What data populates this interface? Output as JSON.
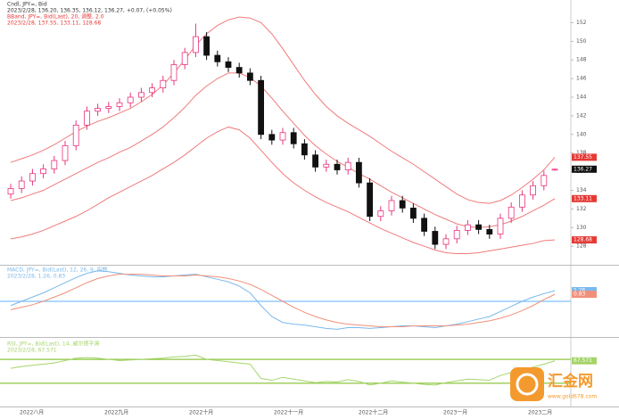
{
  "chart_data": [
    {
      "type": "candlestick",
      "header": [
        "Cndl, JPY=, Bid",
        "2023/2/28, 136.20, 136.35, 136.12, 136.27, +0.07, (+0.05%)"
      ],
      "band_header": [
        "BBand, JPY=, Bid(Last), 20, 调整, 2.0",
        "2023/2/28, 137.55, 133.11, 128.68"
      ],
      "up_color": "#e8347e",
      "down_color": "#111111",
      "open": [
        133.6,
        134.2,
        135.0,
        135.8,
        136.3,
        137.2,
        138.8,
        141.0,
        142.5,
        142.8,
        143.0,
        143.4,
        144.0,
        144.5,
        145.0,
        145.8,
        147.5,
        148.8,
        150.5,
        148.5,
        147.8,
        147.2,
        146.6,
        145.8,
        140.0,
        139.4,
        140.2,
        139.0,
        137.8,
        136.5,
        136.8,
        136.2,
        137.0,
        134.8,
        131.2,
        131.8,
        132.9,
        132.1,
        131.0,
        129.6,
        128.2,
        128.8,
        129.7,
        130.3,
        129.8,
        129.3,
        131.0,
        132.2,
        133.5,
        134.5,
        136.2
      ],
      "high": [
        134.7,
        135.5,
        136.3,
        136.8,
        137.7,
        139.3,
        141.5,
        143.0,
        143.3,
        143.5,
        143.9,
        144.5,
        145.0,
        145.5,
        146.3,
        148.0,
        149.3,
        151.9,
        151.0,
        149.0,
        148.3,
        147.7,
        147.1,
        146.3,
        140.5,
        140.7,
        140.7,
        139.5,
        138.3,
        137.3,
        137.3,
        137.5,
        137.5,
        135.3,
        132.3,
        133.4,
        133.4,
        132.6,
        131.5,
        130.1,
        129.3,
        130.2,
        130.8,
        130.8,
        130.3,
        131.5,
        132.7,
        134.0,
        135.0,
        136.1,
        136.35
      ],
      "low": [
        133.1,
        133.7,
        134.5,
        135.3,
        135.8,
        136.7,
        138.3,
        140.5,
        142.0,
        142.3,
        142.5,
        142.9,
        143.5,
        144.0,
        144.5,
        145.3,
        147.0,
        148.3,
        148.0,
        147.3,
        146.7,
        146.1,
        145.3,
        139.5,
        138.9,
        138.9,
        138.5,
        137.3,
        136.0,
        136.0,
        135.7,
        135.7,
        134.3,
        130.7,
        130.7,
        131.3,
        131.6,
        130.5,
        129.1,
        127.7,
        127.7,
        128.3,
        129.2,
        129.3,
        128.8,
        128.8,
        130.5,
        131.7,
        133.0,
        134.0,
        136.12
      ],
      "close": [
        134.2,
        135.0,
        135.8,
        136.3,
        137.2,
        138.8,
        141.0,
        142.5,
        142.8,
        143.0,
        143.4,
        144.0,
        144.5,
        145.0,
        145.8,
        147.5,
        148.8,
        150.5,
        148.5,
        147.8,
        147.2,
        146.6,
        145.8,
        140.0,
        139.4,
        140.2,
        139.0,
        137.8,
        136.5,
        136.8,
        136.2,
        137.0,
        134.8,
        131.2,
        131.8,
        132.9,
        132.1,
        131.0,
        129.6,
        128.2,
        128.8,
        129.7,
        130.3,
        129.8,
        129.3,
        131.0,
        132.2,
        133.5,
        134.5,
        135.6,
        136.27
      ],
      "bands": {
        "color": "#f07a7a",
        "upper": [
          137.0,
          137.4,
          137.8,
          138.3,
          138.9,
          139.6,
          140.3,
          140.9,
          141.4,
          141.8,
          142.3,
          142.8,
          143.5,
          144.3,
          145.3,
          146.6,
          148.0,
          149.6,
          150.8,
          151.7,
          152.3,
          152.6,
          152.5,
          152.0,
          150.8,
          149.2,
          147.5,
          145.8,
          144.3,
          143.0,
          142.0,
          141.2,
          140.5,
          139.8,
          139.0,
          138.2,
          137.5,
          136.8,
          136.0,
          135.2,
          134.4,
          133.6,
          133.0,
          132.7,
          132.6,
          132.9,
          133.5,
          134.3,
          135.2,
          136.2,
          137.55
        ],
        "middle": [
          132.9,
          133.2,
          133.6,
          134.0,
          134.6,
          135.2,
          135.8,
          136.4,
          137.0,
          137.5,
          138.1,
          138.6,
          139.3,
          140.0,
          140.8,
          141.8,
          142.9,
          144.2,
          145.2,
          146.0,
          146.6,
          146.6,
          146.1,
          145.2,
          143.9,
          142.5,
          141.2,
          139.9,
          138.8,
          137.9,
          137.1,
          136.5,
          135.8,
          135.2,
          134.5,
          133.8,
          133.2,
          132.6,
          132.0,
          131.4,
          130.9,
          130.4,
          130.1,
          130.0,
          130.1,
          130.3,
          130.7,
          131.2,
          131.8,
          132.4,
          133.11
        ],
        "lower": [
          128.8,
          129.0,
          129.3,
          129.7,
          130.2,
          130.7,
          131.2,
          131.8,
          132.5,
          133.2,
          133.8,
          134.4,
          135.0,
          135.6,
          136.3,
          137.0,
          137.8,
          138.7,
          139.6,
          140.3,
          140.8,
          140.5,
          139.6,
          138.3,
          137.0,
          135.8,
          134.8,
          134.0,
          133.3,
          132.7,
          132.2,
          131.7,
          131.1,
          130.5,
          129.9,
          129.4,
          128.9,
          128.4,
          128.0,
          127.6,
          127.3,
          127.2,
          127.2,
          127.3,
          127.5,
          127.7,
          127.9,
          128.1,
          128.3,
          128.6,
          128.68
        ]
      },
      "ylim": [
        126.2,
        153
      ],
      "yticks": [
        128,
        130,
        132,
        134,
        136,
        138,
        140,
        142,
        144,
        146,
        148,
        150,
        152
      ],
      "x_labels": [
        "2022八月",
        "2022九月",
        "2022十月",
        "2022十一月",
        "2022十二月",
        "2023一月",
        "2023二月"
      ]
    },
    {
      "type": "line",
      "header": [
        "MACD, JPY=, Bid(Last), 12, 26, 9, 指数",
        "2023/2/28, 1.26, 0.83"
      ],
      "ylim": [
        -4,
        4
      ],
      "hline": 0,
      "hline_color": "#7fbfff",
      "series": [
        {
          "color": "#7ab8ec",
          "values": [
            -0.5,
            0.0,
            0.5,
            1.0,
            1.6,
            2.2,
            2.8,
            3.3,
            3.6,
            3.5,
            3.3,
            3.1,
            3.0,
            2.9,
            2.9,
            3.0,
            3.1,
            3.2,
            2.9,
            2.6,
            2.3,
            1.8,
            1.0,
            -0.5,
            -1.8,
            -2.5,
            -2.7,
            -2.8,
            -3.0,
            -3.2,
            -3.3,
            -3.1,
            -3.1,
            -3.2,
            -3.1,
            -3.0,
            -2.9,
            -2.9,
            -3.0,
            -3.1,
            -2.9,
            -2.7,
            -2.4,
            -2.1,
            -1.8,
            -1.2,
            -0.6,
            0.0,
            0.5,
            0.9,
            1.26
          ]
        },
        {
          "color": "#f0907a",
          "values": [
            -1.0,
            -0.7,
            -0.4,
            0.0,
            0.5,
            1.0,
            1.6,
            2.2,
            2.7,
            3.0,
            3.2,
            3.2,
            3.2,
            3.1,
            3.0,
            3.0,
            3.0,
            3.1,
            3.0,
            2.9,
            2.7,
            2.4,
            2.0,
            1.4,
            0.7,
            0.0,
            -0.7,
            -1.3,
            -1.8,
            -2.2,
            -2.5,
            -2.7,
            -2.8,
            -2.9,
            -3.0,
            -3.0,
            -3.0,
            -2.9,
            -2.9,
            -2.9,
            -2.9,
            -2.8,
            -2.7,
            -2.5,
            -2.3,
            -2.0,
            -1.6,
            -1.1,
            -0.5,
            0.2,
            0.83
          ]
        }
      ]
    },
    {
      "type": "line",
      "header": [
        "RSI, JPY=, Bid(Last), 14, 威尔德平滑",
        "2023/2/28, 67.571"
      ],
      "ylim": [
        0,
        100
      ],
      "levels": [
        70,
        30
      ],
      "level_color": "#8cc63f",
      "series": [
        {
          "color": "#a5d46a",
          "values": [
            55,
            58,
            60,
            62,
            64,
            68,
            72,
            73,
            72,
            70,
            68,
            69,
            70,
            71,
            72,
            74,
            75,
            77,
            70,
            68,
            66,
            64,
            62,
            38,
            35,
            40,
            37,
            34,
            31,
            33,
            32,
            36,
            33,
            27,
            30,
            34,
            32,
            30,
            28,
            27,
            31,
            34,
            37,
            36,
            35,
            43,
            48,
            53,
            57,
            62,
            67.571
          ]
        }
      ]
    }
  ],
  "watermark": {
    "name": "汇金网",
    "url": "www.gold678.com"
  }
}
